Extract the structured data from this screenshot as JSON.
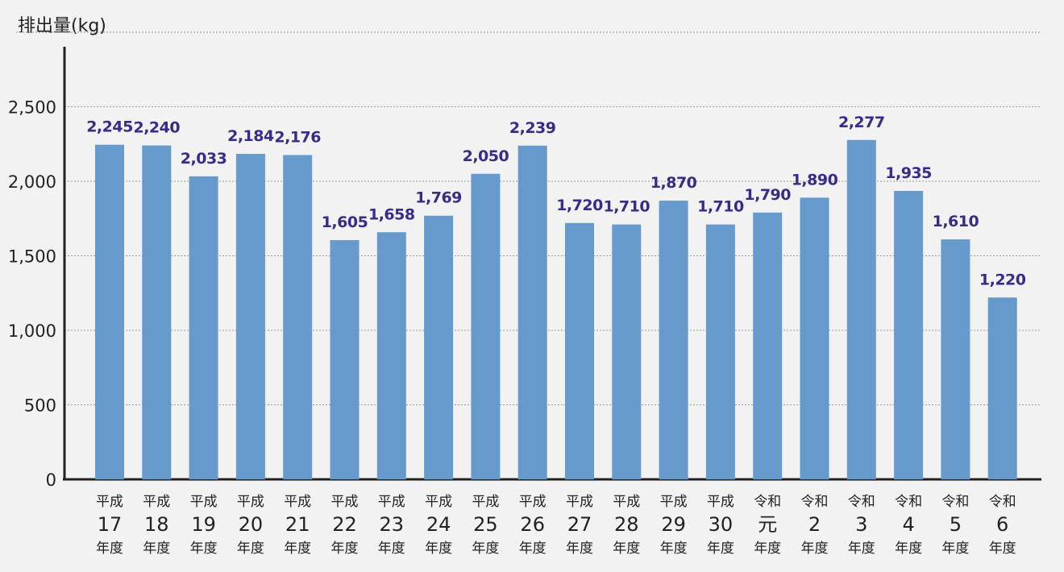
{
  "chart_data": {
    "type": "bar",
    "ylabel": "排出量(kg)",
    "ylim": [
      0,
      2750
    ],
    "yticks": [
      0,
      500,
      1000,
      1500,
      2000,
      2500
    ],
    "ytick_labels": [
      "0",
      "500",
      "1,000",
      "1,500",
      "2,000",
      "2,500"
    ],
    "grid": true,
    "bar_color": "#6699cc",
    "value_label_color": "#3b2a8a",
    "categories": [
      {
        "era": "平成",
        "num": "17",
        "suffix": "年度"
      },
      {
        "era": "平成",
        "num": "18",
        "suffix": "年度"
      },
      {
        "era": "平成",
        "num": "19",
        "suffix": "年度"
      },
      {
        "era": "平成",
        "num": "20",
        "suffix": "年度"
      },
      {
        "era": "平成",
        "num": "21",
        "suffix": "年度"
      },
      {
        "era": "平成",
        "num": "22",
        "suffix": "年度"
      },
      {
        "era": "平成",
        "num": "23",
        "suffix": "年度"
      },
      {
        "era": "平成",
        "num": "24",
        "suffix": "年度"
      },
      {
        "era": "平成",
        "num": "25",
        "suffix": "年度"
      },
      {
        "era": "平成",
        "num": "26",
        "suffix": "年度"
      },
      {
        "era": "平成",
        "num": "27",
        "suffix": "年度"
      },
      {
        "era": "平成",
        "num": "28",
        "suffix": "年度"
      },
      {
        "era": "平成",
        "num": "29",
        "suffix": "年度"
      },
      {
        "era": "平成",
        "num": "30",
        "suffix": "年度"
      },
      {
        "era": "令和",
        "num": "元",
        "suffix": "年度"
      },
      {
        "era": "令和",
        "num": "2",
        "suffix": "年度"
      },
      {
        "era": "令和",
        "num": "3",
        "suffix": "年度"
      },
      {
        "era": "令和",
        "num": "4",
        "suffix": "年度"
      },
      {
        "era": "令和",
        "num": "5",
        "suffix": "年度"
      },
      {
        "era": "令和",
        "num": "6",
        "suffix": "年度"
      }
    ],
    "values": [
      2245,
      2240,
      2033,
      2184,
      2176,
      1605,
      1658,
      1769,
      2050,
      2239,
      1720,
      1710,
      1870,
      1710,
      1790,
      1890,
      2277,
      1935,
      1610,
      1220
    ],
    "value_labels": [
      "2,245",
      "2,240",
      "2,033",
      "2,184",
      "2,176",
      "1,605",
      "1,658",
      "1,769",
      "2,050",
      "2,239",
      "1,720",
      "1,710",
      "1,870",
      "1,710",
      "1,790",
      "1,890",
      "2,277",
      "1,935",
      "1,610",
      "1,220"
    ]
  }
}
